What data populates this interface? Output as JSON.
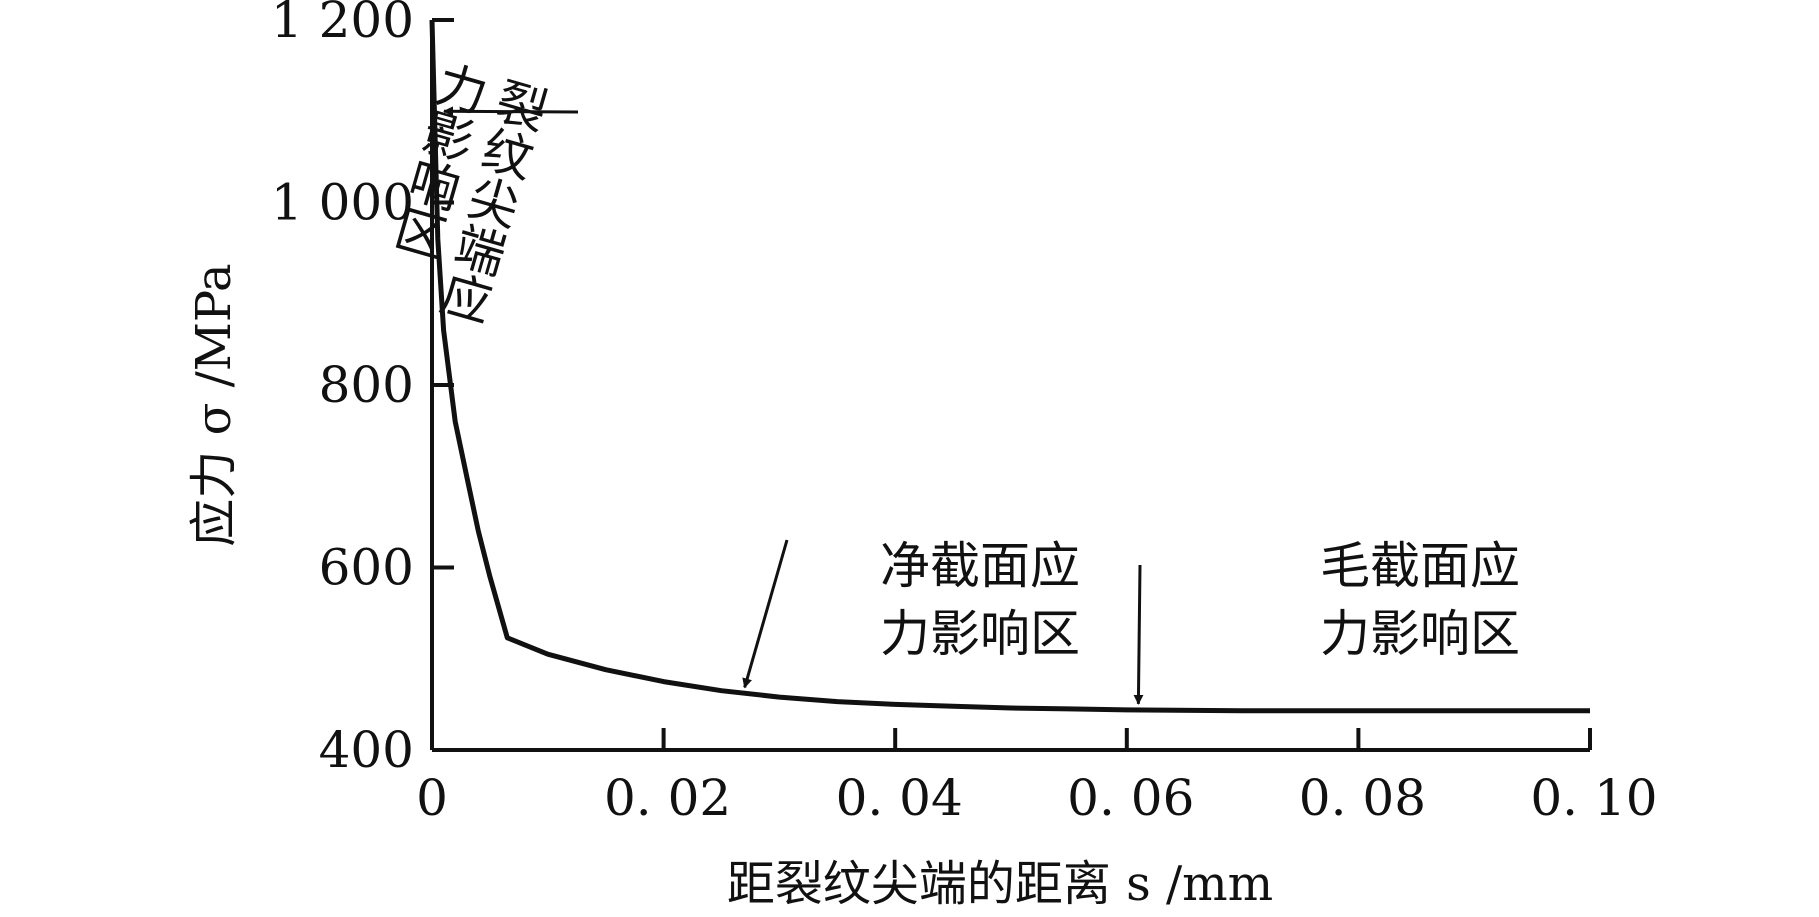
{
  "chart_data": {
    "type": "line",
    "title": "",
    "xlabel": "距裂纹尖端的距离 s /mm",
    "ylabel": "应力 σ /MPa",
    "xlim": [
      0,
      0.1
    ],
    "ylim": [
      400,
      1200
    ],
    "x_ticks": [
      0,
      0.02,
      0.04,
      0.06,
      0.08,
      0.1
    ],
    "x_tick_labels": [
      "0",
      "0. 02",
      "0. 04",
      "0. 06",
      "0. 08",
      "0. 10"
    ],
    "y_ticks": [
      400,
      600,
      800,
      1000,
      1200
    ],
    "y_tick_labels": [
      "400",
      "600",
      "800",
      "1 000",
      "1 200"
    ],
    "grid": false,
    "series": [
      {
        "x": [
          0,
          0.0005,
          0.001,
          0.002,
          0.003,
          0.004,
          0.005,
          0.0065,
          0.01,
          0.015,
          0.02,
          0.025,
          0.03,
          0.035,
          0.04,
          0.045,
          0.05,
          0.055,
          0.06,
          0.07,
          0.08,
          0.09,
          0.1
        ],
        "y": [
          1200,
          960,
          860,
          760,
          700,
          640,
          590,
          523,
          505,
          488,
          475,
          465,
          458,
          453,
          450,
          448,
          446,
          445,
          444,
          443,
          443,
          443,
          443
        ]
      }
    ],
    "annotations": [
      {
        "lines": [
          "裂纹尖端应",
          "力影响区"
        ],
        "arrow_tip": [
          0.0,
          1100
        ]
      },
      {
        "lines": [
          "净截面应",
          "力影响区"
        ],
        "arrow_tip": [
          0.027,
          462
        ]
      },
      {
        "lines": [
          "毛截面应",
          "力影响区"
        ],
        "arrow_tip": [
          0.061,
          444
        ]
      }
    ]
  }
}
